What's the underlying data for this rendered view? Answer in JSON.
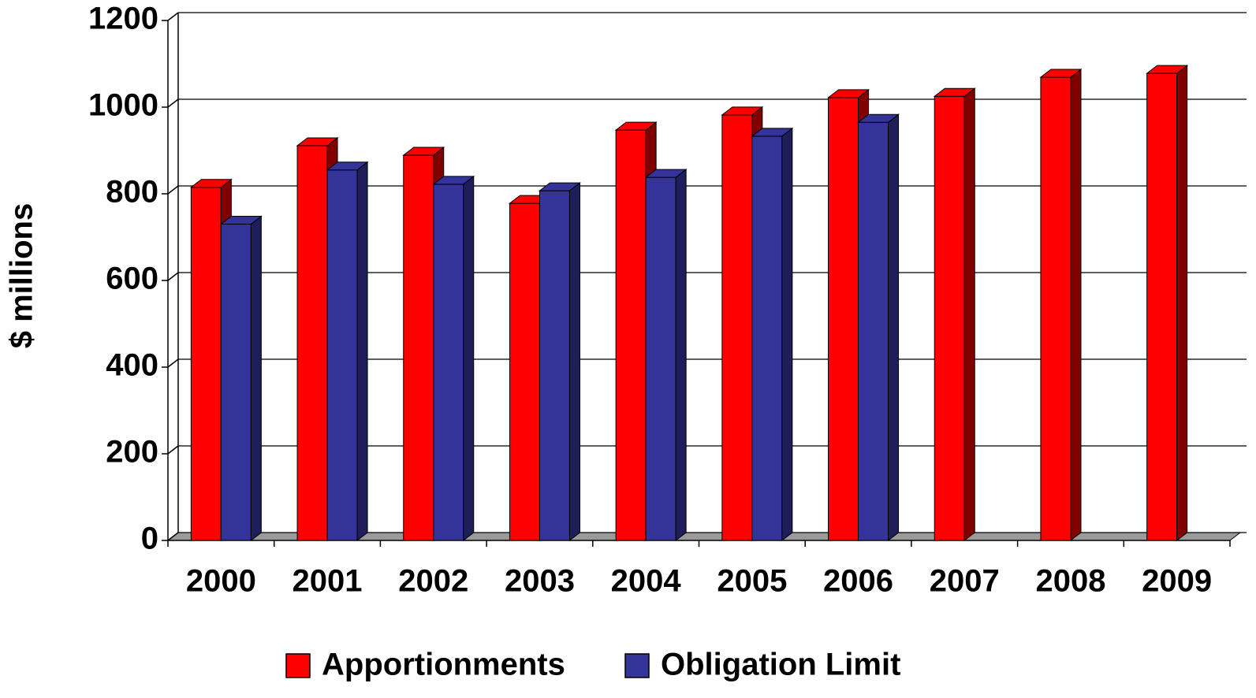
{
  "chart_data": {
    "type": "bar3d",
    "y_label": "$ millions",
    "categories": [
      "2000",
      "2001",
      "2002",
      "2003",
      "2004",
      "2005",
      "2006",
      "2007",
      "2008",
      "2009"
    ],
    "series": [
      {
        "name": "Apportionments",
        "color": "#ff0000",
        "side_color": "#800000",
        "values": [
          815,
          911,
          889,
          778,
          947,
          982,
          1022,
          1025,
          1069,
          1078
        ]
      },
      {
        "name": "Obligation Limit",
        "color": "#333399",
        "side_color": "#1e1e5a",
        "values": [
          730,
          855,
          822,
          807,
          838,
          933,
          965,
          null,
          null,
          null
        ]
      }
    ],
    "ylim": [
      0,
      1200
    ],
    "yticks": [
      0,
      200,
      400,
      600,
      800,
      1000,
      1200
    ],
    "grid": true
  }
}
